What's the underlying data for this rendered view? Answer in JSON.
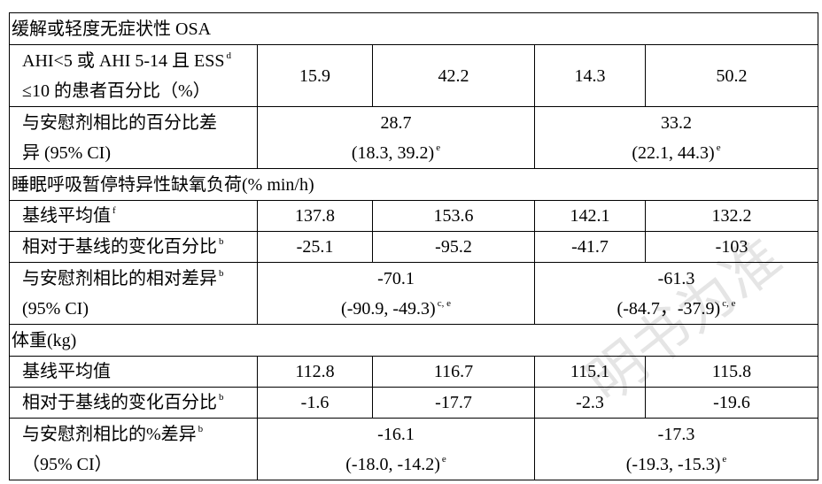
{
  "sections": [
    {
      "title": "缓解或轻度无症状性 OSA",
      "rows": [
        {
          "label_lines": [
            "AHI<5 或 AHI 5-14 且 ESS",
            "≤10 的患者百分比（%）"
          ],
          "label_sup": "d",
          "values": [
            "15.9",
            "42.2",
            "14.3",
            "50.2"
          ]
        },
        {
          "label_lines": [
            "与安慰剂相比的百分比差",
            "异  (95% CI)"
          ],
          "diffs": [
            {
              "value": "28.7",
              "ci": "(18.3, 39.2)",
              "ci_sup": "e"
            },
            {
              "value": "33.2",
              "ci": "(22.1, 44.3)",
              "ci_sup": "e"
            }
          ]
        }
      ]
    },
    {
      "title": "睡眠呼吸暂停特异性缺氧负荷(% min/h)",
      "rows": [
        {
          "label_lines": [
            "基线平均值"
          ],
          "label_sup": "f",
          "values": [
            "137.8",
            "153.6",
            "142.1",
            "132.2"
          ]
        },
        {
          "label_lines": [
            "相对于基线的变化百分比"
          ],
          "label_sup": "b",
          "values": [
            "-25.1",
            "-95.2",
            "-41.7",
            "-103"
          ]
        },
        {
          "label_lines": [
            "与安慰剂相比的相对差异",
            "(95% CI)"
          ],
          "label_sup": "b",
          "diffs": [
            {
              "value": "-70.1",
              "ci": "(-90.9, -49.3)",
              "ci_sup": "c, e"
            },
            {
              "value": "-61.3",
              "ci": "(-84.7，-37.9)",
              "ci_sup": "c, e"
            }
          ]
        }
      ]
    },
    {
      "title": "体重(kg)",
      "rows": [
        {
          "label_lines": [
            "基线平均值"
          ],
          "values": [
            "112.8",
            "116.7",
            "115.1",
            "115.8"
          ]
        },
        {
          "label_lines": [
            "相对于基线的变化百分比"
          ],
          "label_sup": "b",
          "values": [
            "-1.6",
            "-17.7",
            "-2.3",
            "-19.6"
          ]
        },
        {
          "label_lines": [
            "与安慰剂相比的%差异",
            "（95% CI）"
          ],
          "label_sup": "b",
          "diffs": [
            {
              "value": "-16.1",
              "ci": "(-18.0, -14.2)",
              "ci_sup": "e"
            },
            {
              "value": "-17.3",
              "ci": "(-19.3, -15.3)",
              "ci_sup": "e"
            }
          ]
        }
      ]
    }
  ],
  "watermark": "明书为准"
}
